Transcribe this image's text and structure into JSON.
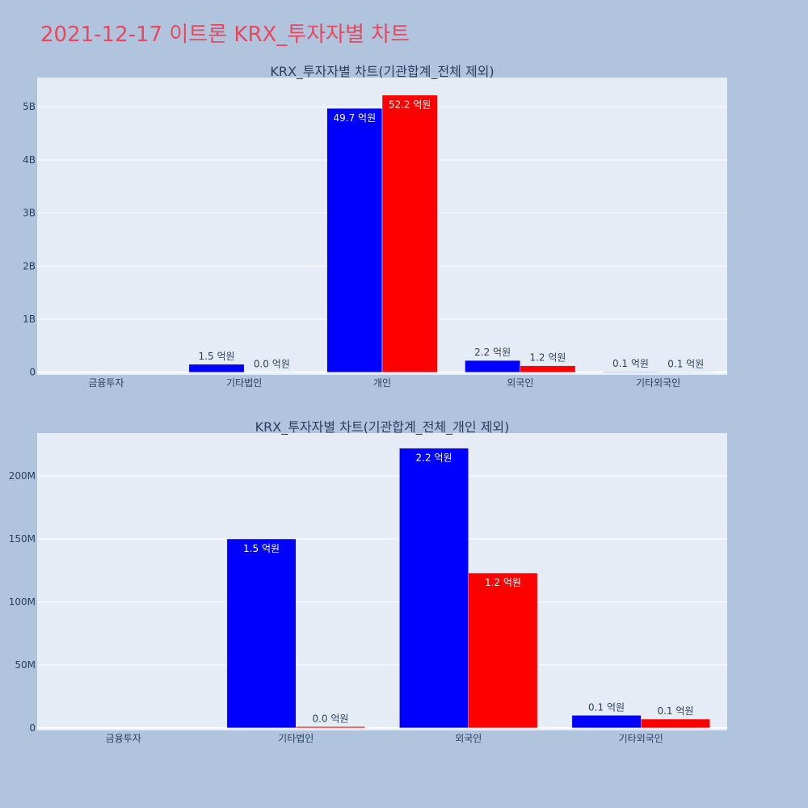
{
  "page": {
    "title": "2021-12-17 이트론 KRX_투자자별 차트"
  },
  "colors": {
    "background": "#b0c4de",
    "plot_bg": "#e5ecf6",
    "title": "#e8485f",
    "series1": "#0000ff",
    "series2": "#ff0000",
    "grid": "#ffffff",
    "axis_text": "#2a3f5f"
  },
  "chart_data": [
    {
      "type": "bar",
      "title": "KRX_투자자별 차트(기관합계_전체 제외)",
      "categories": [
        "금융투자",
        "기타법인",
        "개인",
        "외국인",
        "기타외국인"
      ],
      "series": [
        {
          "values": [
            0,
            150000000,
            4970000000,
            222000000,
            10000000
          ],
          "labels": [
            "",
            "1.5 억원",
            "49.7 억원",
            "2.2 억원",
            "0.1 억원"
          ]
        },
        {
          "values": [
            0,
            1000000,
            5220000000,
            123000000,
            7000000
          ],
          "labels": [
            "",
            "0.0 억원",
            "52.2 억원",
            "1.2 억원",
            "0.1 억원"
          ]
        }
      ],
      "ylim": [
        -50000000,
        5550000000
      ],
      "yticks": [
        0,
        1000000000,
        2000000000,
        3000000000,
        4000000000,
        5000000000
      ],
      "ytick_labels": [
        "0",
        "1B",
        "2B",
        "3B",
        "4B",
        "5B"
      ],
      "grid": true
    },
    {
      "type": "bar",
      "title": "KRX_투자자별 차트(기관합계_전체_개인 제외)",
      "categories": [
        "금융투자",
        "기타법인",
        "외국인",
        "기타외국인"
      ],
      "series": [
        {
          "values": [
            0,
            150000000,
            222000000,
            10000000
          ],
          "labels": [
            "",
            "1.5 억원",
            "2.2 억원",
            "0.1 억원"
          ]
        },
        {
          "values": [
            0,
            1000000,
            123000000,
            7000000
          ],
          "labels": [
            "",
            "0.0 억원",
            "1.2 억원",
            "0.1 억원"
          ]
        }
      ],
      "ylim": [
        -2000000,
        234000000
      ],
      "yticks": [
        0,
        50000000,
        100000000,
        150000000,
        200000000
      ],
      "ytick_labels": [
        "0",
        "50M",
        "100M",
        "150M",
        "200M"
      ],
      "grid": true
    }
  ]
}
